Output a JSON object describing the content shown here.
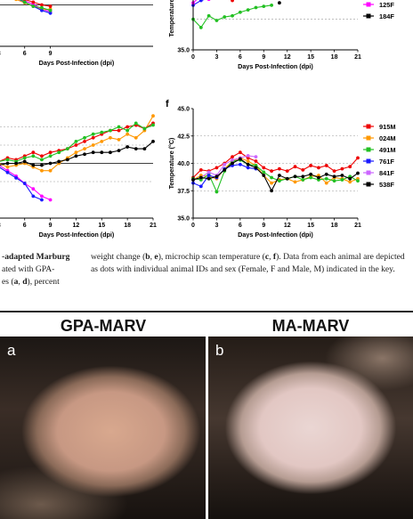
{
  "chart_data": [
    {
      "type": "line",
      "panel_label": "",
      "xlabel": "Days Post-Infection (dpi)",
      "x_ticks": [
        "3",
        "6",
        "9"
      ],
      "xlim": [
        0,
        21
      ],
      "ylim": [
        40,
        120
      ],
      "ref_lines": [
        100
      ],
      "series": [
        {
          "name": "",
          "color": "#ff00ff",
          "x": [
            0,
            1,
            2,
            3,
            4,
            5,
            6,
            7,
            8,
            9
          ],
          "y": [
            116,
            117,
            118,
            118,
            116,
            112,
            106,
            101,
            94,
            90
          ]
        },
        {
          "name": "",
          "color": "#ff9800",
          "x": [
            0,
            1,
            2,
            3,
            4,
            5,
            6,
            7,
            8,
            9
          ],
          "y": [
            118,
            118,
            117,
            116,
            113,
            108,
            103,
            98,
            93,
            94
          ]
        },
        {
          "name": "",
          "color": "#1a1aff",
          "x": [
            0,
            1,
            2,
            3,
            4,
            5,
            6,
            7,
            8,
            9
          ],
          "y": [
            117,
            118,
            116,
            115,
            114,
            110,
            104,
            98,
            92,
            88
          ]
        },
        {
          "name": "",
          "color": "#ee0000",
          "x": [
            0,
            1,
            2,
            3,
            4,
            5,
            6,
            7,
            8,
            9
          ],
          "y": [
            118,
            118,
            118,
            117,
            118,
            114,
            108,
            104,
            100,
            98
          ]
        },
        {
          "name": "",
          "color": "#22c022",
          "x": [
            0,
            1,
            2,
            3,
            4,
            5,
            6,
            7,
            8,
            9
          ],
          "y": [
            118,
            117,
            118,
            116,
            114,
            112,
            104,
            98,
            96,
            92
          ]
        }
      ]
    },
    {
      "type": "line",
      "panel_label": "",
      "ylabel": "Temperature",
      "xlabel": "Days Post-Infection (dpi)",
      "x_ticks": [
        "0",
        "3",
        "6",
        "9",
        "12",
        "15",
        "18",
        "21"
      ],
      "y_ticks": [
        "35.0"
      ],
      "xlim": [
        0,
        21
      ],
      "ylim": [
        35,
        40
      ],
      "ref_lines": [
        37.6
      ],
      "series": [
        {
          "name": "",
          "color": "#ee0000",
          "x": [
            0,
            1,
            2,
            3,
            4,
            5,
            6,
            7
          ],
          "y": [
            39.6,
            39.8,
            39.4,
            39.6,
            39.8,
            39.2,
            39.8,
            39.9
          ]
        },
        {
          "name": "",
          "color": "#1a1aff",
          "x": [
            0,
            1,
            2,
            3
          ],
          "y": [
            38.8,
            39.2,
            39.4,
            39.6
          ]
        },
        {
          "name": "",
          "color": "#ff00ff",
          "x": [
            0,
            1,
            2,
            3
          ],
          "y": [
            39.0,
            39.6,
            39.3,
            39.5
          ]
        },
        {
          "name": "",
          "color": "#22c022",
          "x": [
            0,
            1,
            2,
            3,
            4,
            5,
            6,
            7,
            8,
            9,
            10
          ],
          "y": [
            37.6,
            36.9,
            37.9,
            37.5,
            37.8,
            37.9,
            38.2,
            38.4,
            38.6,
            38.7,
            38.8
          ]
        },
        {
          "name": "",
          "color": "#000000",
          "x": [
            11
          ],
          "y": [
            39.0
          ]
        }
      ],
      "legend": [
        {
          "label": "125F",
          "color": "#ff00ff"
        },
        {
          "label": "184F",
          "color": "#000000"
        }
      ]
    },
    {
      "type": "line",
      "panel_label": "",
      "xlabel": "Days Post-Infection (dpi)",
      "x_ticks": [
        "3",
        "6",
        "9",
        "12",
        "15",
        "18",
        "21"
      ],
      "xlim": [
        0,
        21
      ],
      "ylim": [
        70,
        130
      ],
      "ref_lines": [
        100
      ],
      "series": [
        {
          "name": "",
          "color": "#ff00ff",
          "x": [
            0,
            1,
            2,
            3,
            4,
            5,
            6,
            7,
            8,
            9
          ],
          "y": [
            100,
            99,
            100,
            99,
            96,
            93,
            89,
            86,
            82,
            80
          ]
        },
        {
          "name": "",
          "color": "#1a1aff",
          "x": [
            0,
            1,
            2,
            3,
            4,
            5,
            6,
            7,
            8
          ],
          "y": [
            100,
            99,
            98,
            98,
            95,
            92,
            89,
            82,
            80
          ]
        },
        {
          "name": "",
          "color": "#ff9800",
          "x": [
            0,
            1,
            2,
            3,
            4,
            5,
            6,
            7,
            8,
            9,
            10,
            11,
            12,
            13,
            14,
            15,
            16,
            17,
            18,
            19,
            20,
            21
          ],
          "y": [
            101,
            100,
            101,
            100,
            98,
            99,
            100,
            98,
            96,
            96,
            100,
            103,
            106,
            108,
            110,
            112,
            114,
            113,
            116,
            114,
            118,
            126
          ]
        },
        {
          "name": "",
          "color": "#ee0000",
          "x": [
            0,
            1,
            2,
            3,
            4,
            5,
            6,
            7,
            8,
            9,
            10,
            11,
            12,
            13,
            14,
            15,
            16,
            17,
            18,
            19,
            20,
            21
          ],
          "y": [
            101,
            101,
            102,
            101,
            103,
            102,
            104,
            106,
            104,
            106,
            107,
            108,
            110,
            112,
            114,
            116,
            118,
            118,
            120,
            121,
            119,
            122
          ]
        },
        {
          "name": "",
          "color": "#22c022",
          "x": [
            0,
            1,
            2,
            3,
            4,
            5,
            6,
            7,
            8,
            9,
            10,
            11,
            12,
            13,
            14,
            15,
            16,
            17,
            18,
            19,
            20,
            21
          ],
          "y": [
            100,
            101,
            100,
            101,
            102,
            101,
            103,
            104,
            102,
            104,
            106,
            108,
            112,
            114,
            116,
            117,
            118,
            120,
            118,
            122,
            119,
            121
          ]
        },
        {
          "name": "",
          "color": "#000000",
          "x": [
            0,
            1,
            2,
            3,
            4,
            5,
            6,
            7,
            8,
            9,
            10,
            11,
            12,
            13,
            14,
            15,
            16,
            17,
            18,
            19,
            20,
            21
          ],
          "y": [
            100,
            100,
            100,
            99,
            100,
            100,
            101,
            99,
            99,
            100,
            101,
            102,
            104,
            105,
            106,
            106,
            106,
            107,
            109,
            108,
            108,
            112
          ]
        }
      ]
    },
    {
      "type": "line",
      "panel_label": "f",
      "ylabel": "Temperature (°C)",
      "xlabel": "Days Post-Infection (dpi)",
      "x_ticks": [
        "0",
        "3",
        "6",
        "9",
        "12",
        "15",
        "18",
        "21"
      ],
      "y_ticks": [
        "35.0",
        "37.5",
        "40.0",
        "42.5",
        "45.0"
      ],
      "xlim": [
        0,
        21
      ],
      "ylim": [
        35,
        45
      ],
      "ref_lines": [
        37.5,
        40.0,
        42.5
      ],
      "series": [
        {
          "name": "915M",
          "color": "#ee0000",
          "x": [
            0,
            1,
            2,
            3,
            4,
            5,
            6,
            7,
            8,
            9,
            10,
            11,
            12,
            13,
            14,
            15,
            16,
            17,
            18,
            19,
            20,
            21
          ],
          "y": [
            38.7,
            39.4,
            39.3,
            39.6,
            40.0,
            40.6,
            41.0,
            40.5,
            40.2,
            39.6,
            39.3,
            39.5,
            39.3,
            39.7,
            39.4,
            39.8,
            39.6,
            39.8,
            39.3,
            39.5,
            39.7,
            40.5
          ]
        },
        {
          "name": "024M",
          "color": "#ff9800",
          "x": [
            0,
            1,
            2,
            3,
            4,
            5,
            6,
            7,
            8,
            9,
            10,
            11,
            12,
            13,
            14,
            15,
            16,
            17,
            18,
            19,
            20,
            21
          ],
          "y": [
            38.5,
            38.9,
            38.8,
            38.6,
            39.5,
            40.2,
            40.5,
            40.2,
            39.8,
            38.9,
            38.2,
            38.5,
            38.6,
            38.3,
            38.5,
            38.8,
            38.9,
            38.2,
            38.7,
            38.6,
            38.3,
            38.6
          ]
        },
        {
          "name": "491M",
          "color": "#22c022",
          "x": [
            0,
            1,
            2,
            3,
            4,
            5,
            6,
            7,
            8,
            9,
            10,
            11,
            12,
            13,
            14,
            15,
            16,
            17,
            18,
            19,
            20,
            21
          ],
          "y": [
            38.6,
            38.5,
            39.0,
            37.4,
            39.3,
            40.2,
            40.3,
            39.9,
            39.8,
            39.2,
            38.7,
            38.4,
            38.6,
            38.8,
            38.5,
            38.7,
            38.5,
            38.6,
            38.4,
            38.5,
            38.8,
            38.4
          ]
        },
        {
          "name": "761F",
          "color": "#1a1aff",
          "x": [
            0,
            1,
            2,
            3,
            4,
            5,
            6,
            7,
            8
          ],
          "y": [
            38.2,
            37.9,
            38.9,
            38.7,
            39.5,
            39.8,
            39.9,
            39.6,
            39.5
          ]
        },
        {
          "name": "841F",
          "color": "#cc66ff",
          "x": [
            0,
            1,
            2,
            3,
            4,
            5,
            6,
            7,
            8
          ],
          "y": [
            38.5,
            38.7,
            39.2,
            38.9,
            39.9,
            40.3,
            40.5,
            40.7,
            40.6
          ]
        },
        {
          "name": "538F",
          "color": "#000000",
          "x": [
            0,
            1,
            2,
            3,
            4,
            5,
            6,
            7,
            8,
            9,
            10,
            11,
            12,
            13,
            14,
            15,
            16,
            17,
            18,
            19,
            20,
            21
          ],
          "y": [
            38.5,
            38.7,
            38.6,
            38.8,
            39.4,
            40.0,
            40.4,
            39.9,
            39.6,
            38.9,
            37.5,
            38.9,
            38.6,
            38.8,
            38.8,
            39.0,
            38.7,
            39.0,
            38.8,
            38.9,
            38.6,
            39.1
          ]
        }
      ]
    }
  ],
  "caption_left": {
    "line1": "-adapted Marburg",
    "line2": "ated with GPA-",
    "line3_pre": "es (",
    "line3_a": "a",
    "line3_mid": ", ",
    "line3_d": "d",
    "line3_post": "), percent"
  },
  "caption_right": {
    "p1": "weight change (",
    "b": "b",
    "p2": ", ",
    "e": "e",
    "p3": "), microchip scan temperature (",
    "c": "c",
    "p4": ", ",
    "f": "f",
    "p5": "). Data from each animal are depicted as dots with individual animal IDs and sex (Female, F and Male, M) indicated in the key."
  },
  "photos": {
    "a_title": "GPA-MARV",
    "b_title": "MA-MARV",
    "a_label": "a",
    "b_label": "b"
  }
}
